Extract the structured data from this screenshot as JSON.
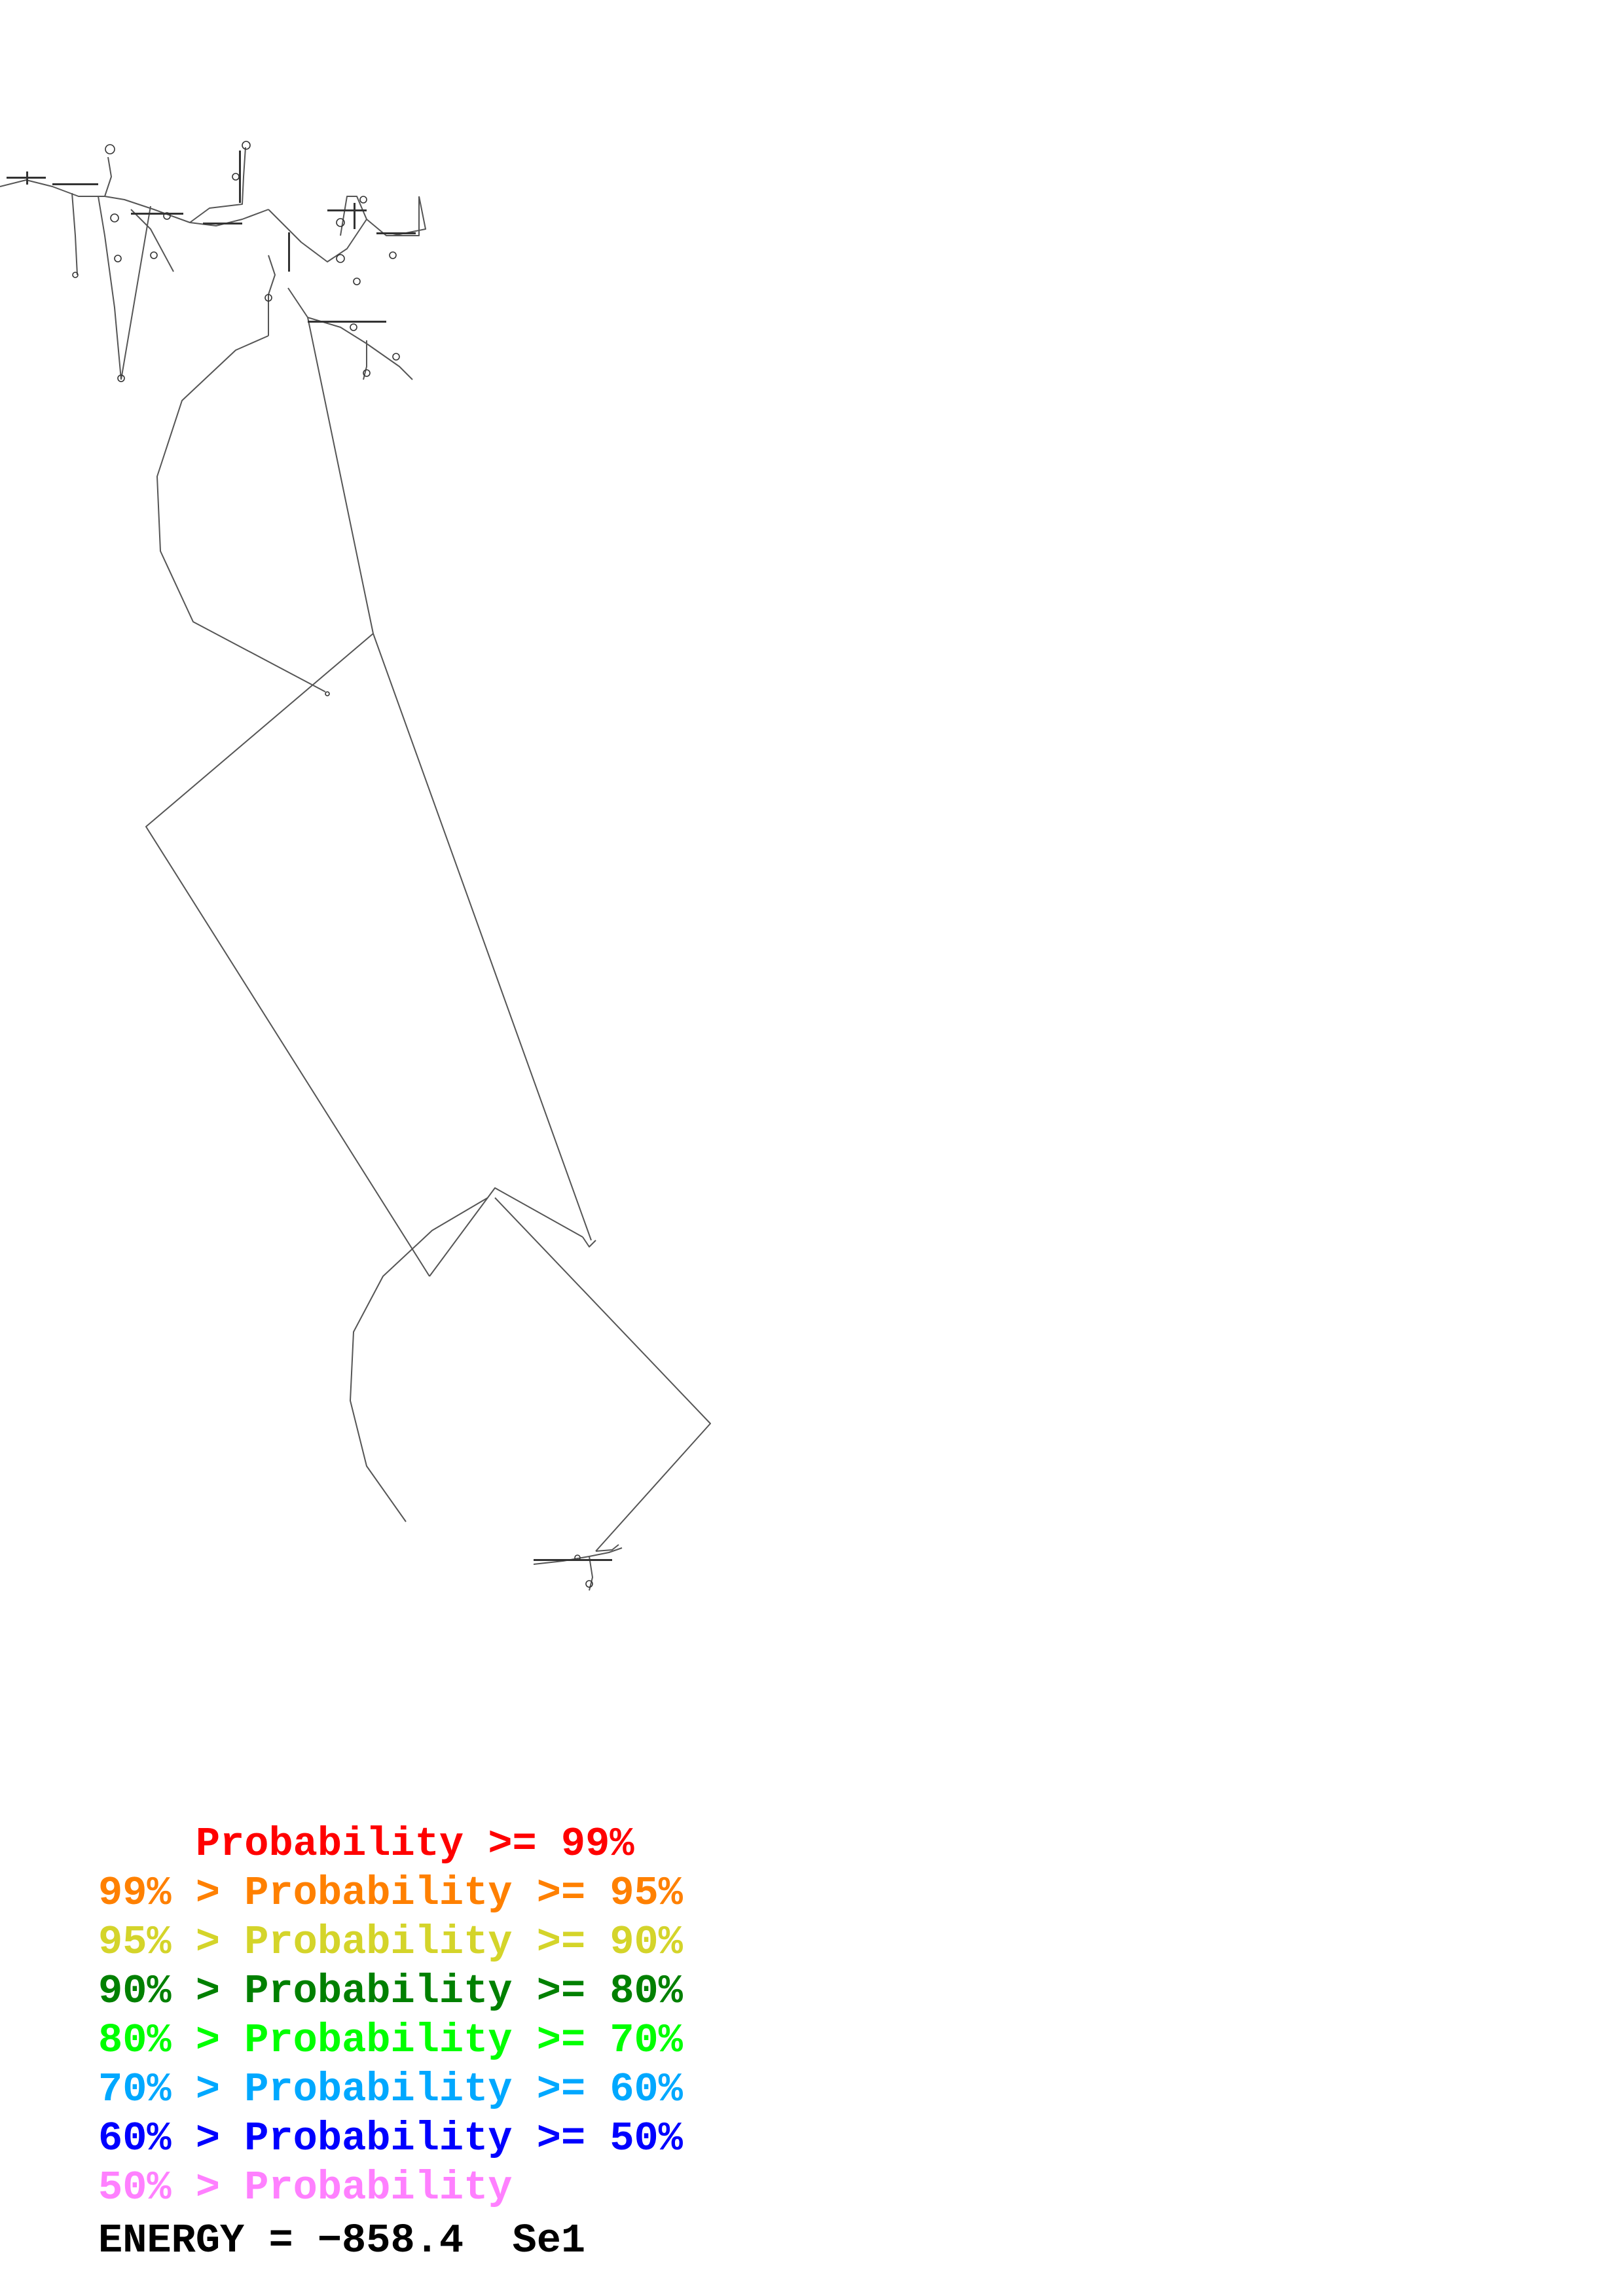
{
  "legend": [
    {
      "lead": "    ",
      "label": "Probability",
      "tail": " >= 99%",
      "color": "#ff0000"
    },
    {
      "lead": "99% > ",
      "label": "Probability",
      "tail": " >= 95%",
      "color": "#ff8000"
    },
    {
      "lead": "95% > ",
      "label": "Probability",
      "tail": " >= 90%",
      "color": "#d4d42a"
    },
    {
      "lead": "90% > ",
      "label": "Probability",
      "tail": " >= 80%",
      "color": "#008000"
    },
    {
      "lead": "80% > ",
      "label": "Probability",
      "tail": " >= 70%",
      "color": "#00ff00"
    },
    {
      "lead": "70% > ",
      "label": "Probability",
      "tail": " >= 60%",
      "color": "#00a8ff"
    },
    {
      "lead": "60% > ",
      "label": "Probability",
      "tail": " >= 50%",
      "color": "#0000ff"
    },
    {
      "lead": "50% > ",
      "label": "Probability",
      "tail": "",
      "color": "#ff80ff"
    }
  ],
  "energy": {
    "label": "ENERGY = −858.4",
    "name": "Se1"
  },
  "structure": {
    "line_color": "#555555"
  }
}
